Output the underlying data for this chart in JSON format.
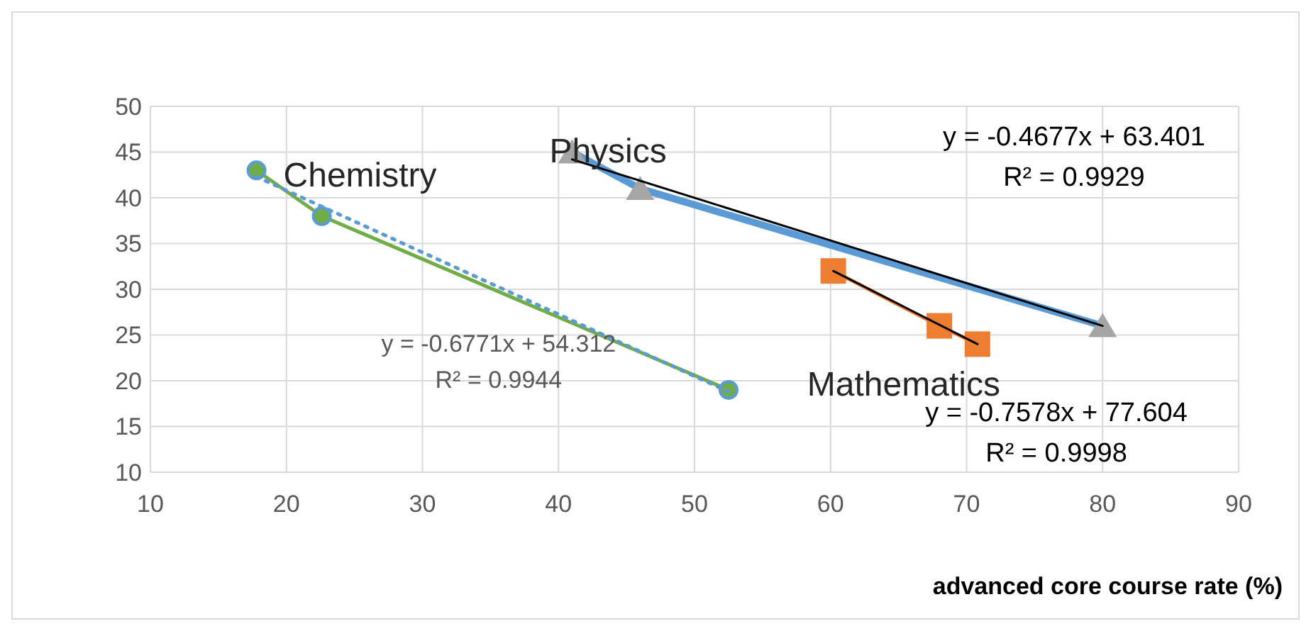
{
  "chart_data": {
    "type": "line",
    "xlabel": "advanced core course rate (%)",
    "xlim": [
      10,
      90
    ],
    "xticks": [
      10,
      20,
      30,
      40,
      50,
      60,
      70,
      80,
      90
    ],
    "ylim": [
      10,
      50
    ],
    "yticks": [
      10,
      15,
      20,
      25,
      30,
      35,
      40,
      45,
      50
    ],
    "grid": true,
    "series": [
      {
        "name": "Chemistry",
        "color": "#70ad47",
        "marker": "circle",
        "x": [
          17.8,
          22.6,
          52.5
        ],
        "values": [
          43,
          38,
          19
        ]
      },
      {
        "color": "#5b9bd5",
        "line_style": "dotted",
        "marker": "none",
        "x": [
          17.8,
          52.5
        ],
        "values": [
          42.3,
          18.8
        ]
      },
      {
        "color": "#5b9bd5",
        "marker": "none",
        "x": [
          41,
          46,
          80
        ],
        "values": [
          45,
          41,
          26
        ]
      },
      {
        "name": "Physics",
        "type": "scatter",
        "color": "#a5a5a5",
        "marker": "triangle",
        "x": [
          41,
          46,
          80
        ],
        "values": [
          45,
          41,
          26
        ]
      },
      {
        "color": "#000000",
        "marker": "none",
        "x": [
          41,
          80
        ],
        "values": [
          44.2,
          26
        ]
      },
      {
        "name": "Mathematics",
        "color": "#ed7d31",
        "marker": "square",
        "x": [
          60.2,
          68,
          70.8
        ],
        "values": [
          32,
          26,
          24
        ]
      },
      {
        "color": "#000000",
        "marker": "none",
        "x": [
          60.2,
          70.8
        ],
        "values": [
          32,
          24
        ]
      }
    ],
    "annotations": [
      "y = -0.6771x + 54.312\nR² = 0.9944",
      "y = -0.4677x + 63.401\nR² = 0.9929",
      "y = -0.7578x + 77.604\nR² = 0.9998"
    ]
  }
}
